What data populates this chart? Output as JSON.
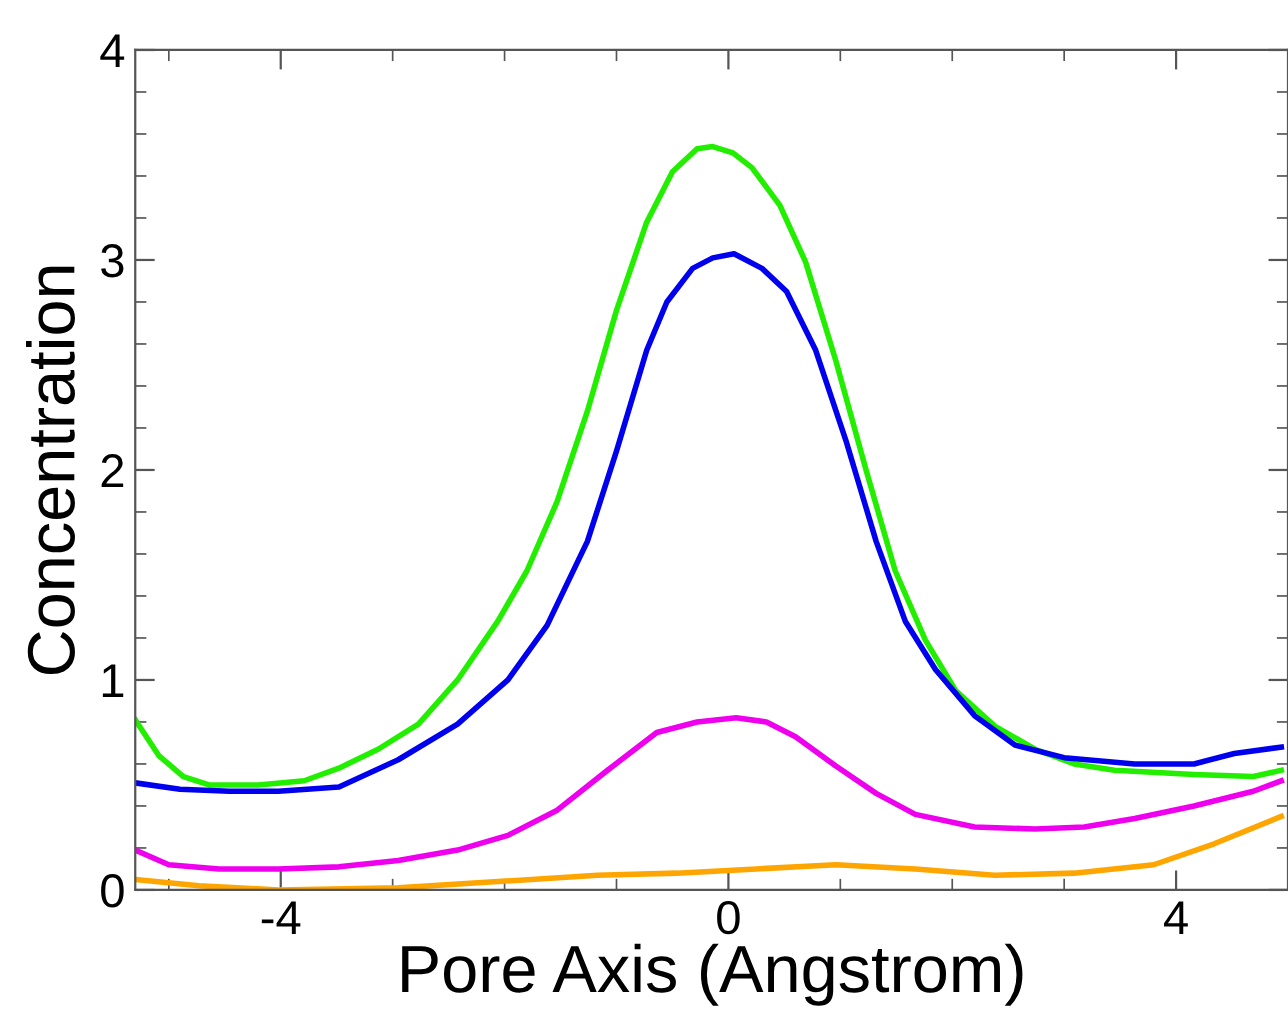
{
  "chart_data": {
    "type": "line",
    "xlabel": "Pore Axis (Angstrom)",
    "ylabel": "Concentration",
    "xlim": [
      -5.3,
      5.0
    ],
    "xticks": [
      -4,
      0,
      4
    ],
    "ylim": [
      0,
      4
    ],
    "yticks": [
      0,
      1,
      2,
      3,
      4
    ],
    "series": [
      {
        "color": "#22ee00",
        "x": [
          -5.3,
          -5.09,
          -4.87,
          -4.64,
          -4.2,
          -3.79,
          -3.48,
          -3.13,
          -2.77,
          -2.42,
          -2.06,
          -1.8,
          -1.53,
          -1.26,
          -1.0,
          -0.73,
          -0.5,
          -0.28,
          -0.14,
          0.04,
          0.21,
          0.46,
          0.69,
          0.96,
          1.23,
          1.49,
          1.76,
          2.03,
          2.38,
          2.74,
          3.09,
          3.45,
          4.16,
          4.69,
          4.94
        ],
        "values": [
          0.81,
          0.64,
          0.54,
          0.5,
          0.5,
          0.52,
          0.58,
          0.67,
          0.79,
          1.0,
          1.28,
          1.52,
          1.85,
          2.28,
          2.76,
          3.18,
          3.42,
          3.53,
          3.54,
          3.51,
          3.44,
          3.26,
          2.99,
          2.52,
          2.0,
          1.52,
          1.19,
          0.95,
          0.78,
          0.67,
          0.6,
          0.57,
          0.55,
          0.54,
          0.57
        ]
      },
      {
        "color": "#0000ee",
        "x": [
          -5.3,
          -4.9,
          -4.46,
          -4.02,
          -3.48,
          -2.95,
          -2.42,
          -1.97,
          -1.62,
          -1.26,
          -1.0,
          -0.73,
          -0.55,
          -0.32,
          -0.14,
          0.05,
          0.3,
          0.52,
          0.78,
          1.05,
          1.32,
          1.58,
          1.85,
          2.2,
          2.56,
          3.0,
          3.63,
          4.16,
          4.52,
          4.94
        ],
        "values": [
          0.51,
          0.48,
          0.47,
          0.47,
          0.49,
          0.62,
          0.79,
          1.0,
          1.26,
          1.66,
          2.09,
          2.57,
          2.8,
          2.96,
          3.01,
          3.03,
          2.96,
          2.85,
          2.57,
          2.14,
          1.66,
          1.28,
          1.05,
          0.83,
          0.69,
          0.63,
          0.6,
          0.6,
          0.65,
          0.68
        ]
      },
      {
        "color": "#ee00ee",
        "x": [
          -5.3,
          -5.0,
          -4.55,
          -4.02,
          -3.48,
          -2.95,
          -2.42,
          -1.97,
          -1.53,
          -1.08,
          -0.64,
          -0.28,
          0.07,
          0.34,
          0.6,
          0.96,
          1.32,
          1.67,
          2.2,
          2.74,
          3.18,
          3.63,
          4.16,
          4.69,
          4.94
        ],
        "values": [
          0.19,
          0.12,
          0.1,
          0.1,
          0.11,
          0.14,
          0.19,
          0.26,
          0.38,
          0.57,
          0.75,
          0.8,
          0.82,
          0.8,
          0.73,
          0.59,
          0.46,
          0.36,
          0.3,
          0.29,
          0.3,
          0.34,
          0.4,
          0.47,
          0.52
        ]
      },
      {
        "color": "#ffa500",
        "x": [
          -5.3,
          -4.73,
          -4.02,
          -2.95,
          -2.06,
          -1.17,
          -0.46,
          0.25,
          0.96,
          1.67,
          2.38,
          3.09,
          3.8,
          4.34,
          4.94
        ],
        "values": [
          0.05,
          0.02,
          0.0,
          0.01,
          0.04,
          0.07,
          0.08,
          0.1,
          0.12,
          0.1,
          0.07,
          0.08,
          0.12,
          0.22,
          0.35
        ]
      }
    ]
  }
}
